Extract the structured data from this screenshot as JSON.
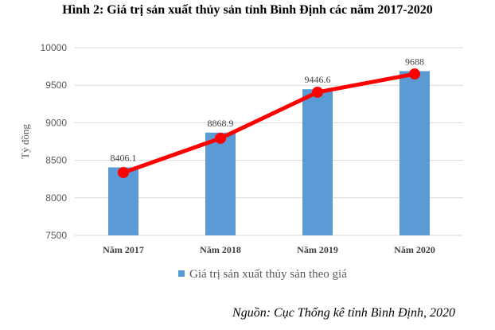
{
  "chart_data": {
    "type": "bar",
    "title": "Hình 2: Giá trị sản xuất thủy sản tỉnh Bình Định các năm 2017-2020",
    "categories": [
      "Năm 2017",
      "Năm 2018",
      "Năm 2019",
      "Năm 2020"
    ],
    "series": [
      {
        "name": "Giá trị sản xuất thủy sản theo giá",
        "type": "bar",
        "color": "#5B9BD5",
        "values": [
          8406.1,
          8868.9,
          9446.6,
          9688
        ],
        "labels": [
          "8406.1",
          "8868.9",
          "9446.6",
          "9688"
        ]
      },
      {
        "name": "trend",
        "type": "line",
        "color": "#FF0000",
        "values": [
          8337,
          8793,
          9407,
          9650
        ]
      }
    ],
    "ylabel": "Tỷ đồng",
    "xlabel": "",
    "ylim": [
      7500,
      10000
    ],
    "yticks": [
      "7500",
      "8000",
      "8500",
      "9000",
      "9500",
      "10000"
    ],
    "grid": true,
    "legend": "bottom"
  },
  "source": "Nguồn: Cục Thống kê tỉnh Bình Định, 2020"
}
